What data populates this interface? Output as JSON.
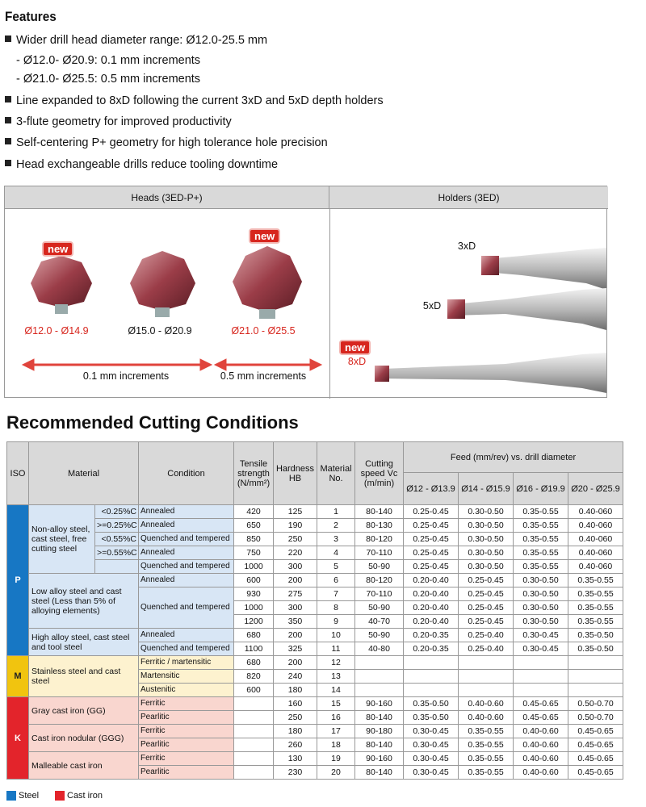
{
  "features": {
    "title": "Features",
    "items": [
      {
        "text": "Wider drill head diameter range: Ø12.0-25.5 mm",
        "subitems": [
          "- Ø12.0- Ø20.9: 0.1 mm increments",
          "- Ø21.0- Ø25.5: 0.5 mm increments"
        ]
      },
      {
        "text": "Line expanded to 8xD following the current 3xD and 5xD depth holders"
      },
      {
        "text": "3-flute geometry for improved productivity"
      },
      {
        "text": "Self-centering P+ geometry for high tolerance hole precision"
      },
      {
        "text": "Head exchangeable drills reduce tooling downtime"
      }
    ]
  },
  "overview": {
    "heads": {
      "title": "Heads (3ED-P+)",
      "items": [
        {
          "label": "Ø12.0 - Ø14.9",
          "badge": "new"
        },
        {
          "label": "Ø15.0 - Ø20.9"
        },
        {
          "label": "Ø21.0 - Ø25.5",
          "badge": "new"
        }
      ],
      "increments": [
        "0.1 mm increments",
        "0.5 mm increments"
      ]
    },
    "holders": {
      "title": "Holders (3ED)",
      "items": [
        {
          "label": "3xD"
        },
        {
          "label": "5xD"
        },
        {
          "label": "8xD",
          "badge": "new"
        }
      ]
    }
  },
  "cutting": {
    "title": "Recommended Cutting Conditions",
    "headers": {
      "iso": "ISO",
      "material": "Material",
      "condition": "Condition",
      "tensile": "Tensile strength (N/mm²)",
      "hardness": "Hardness HB",
      "material_no": "Material No.",
      "speed": "Cutting speed Vc (m/min)",
      "feed": "Feed (mm/rev) vs. drill diameter",
      "diameters": [
        "Ø12 - Ø13.9",
        "Ø14 - Ø15.9",
        "Ø16 - Ø19.9",
        "Ø20 - Ø25.9"
      ]
    },
    "groups": [
      {
        "iso": "P",
        "materials": [
          {
            "name": "Non-alloy steel, cast steel, free cutting steel",
            "rows": [
              {
                "carbon": "<0.25%C",
                "condition": "Annealed",
                "tensile": 420,
                "hb": 125,
                "no": 1,
                "vc": "80-140",
                "feed": [
                  "0.25-0.45",
                  "0.30-0.50",
                  "0.35-0.55",
                  "0.40-060"
                ]
              },
              {
                "carbon": ">=0.25%C",
                "condition": "Annealed",
                "tensile": 650,
                "hb": 190,
                "no": 2,
                "vc": "80-130",
                "feed": [
                  "0.25-0.45",
                  "0.30-0.50",
                  "0.35-0.55",
                  "0.40-060"
                ]
              },
              {
                "carbon": "<0.55%C",
                "condition": "Quenched and tempered",
                "tensile": 850,
                "hb": 250,
                "no": 3,
                "vc": "80-120",
                "feed": [
                  "0.25-0.45",
                  "0.30-0.50",
                  "0.35-0.55",
                  "0.40-060"
                ]
              },
              {
                "carbon": ">=0.55%C",
                "condition": "Annealed",
                "tensile": 750,
                "hb": 220,
                "no": 4,
                "vc": "70-110",
                "feed": [
                  "0.25-0.45",
                  "0.30-0.50",
                  "0.35-0.55",
                  "0.40-060"
                ]
              },
              {
                "condition": "Quenched and tempered",
                "tensile": 1000,
                "hb": 300,
                "no": 5,
                "vc": "50-90",
                "feed": [
                  "0.25-0.45",
                  "0.30-0.50",
                  "0.35-0.55",
                  "0.40-060"
                ]
              }
            ]
          },
          {
            "name": "Low alloy steel and cast steel (Less than 5% of alloying elements)",
            "rows": [
              {
                "condition": "Annealed",
                "tensile": 600,
                "hb": 200,
                "no": 6,
                "vc": "80-120",
                "feed": [
                  "0.20-0.40",
                  "0.25-0.45",
                  "0.30-0.50",
                  "0.35-0.55"
                ]
              },
              {
                "condition": "Quenched and tempered",
                "tensile": 930,
                "hb": 275,
                "no": 7,
                "vc": "70-110",
                "feed": [
                  "0.20-0.40",
                  "0.25-0.45",
                  "0.30-0.50",
                  "0.35-0.55"
                ]
              },
              {
                "tensile": 1000,
                "hb": 300,
                "no": 8,
                "vc": "50-90",
                "feed": [
                  "0.20-0.40",
                  "0.25-0.45",
                  "0.30-0.50",
                  "0.35-0.55"
                ]
              },
              {
                "tensile": 1200,
                "hb": 350,
                "no": 9,
                "vc": "40-70",
                "feed": [
                  "0.20-0.40",
                  "0.25-0.45",
                  "0.30-0.50",
                  "0.35-0.55"
                ]
              }
            ]
          },
          {
            "name": "High alloy steel, cast steel and tool steel",
            "rows": [
              {
                "condition": "Annealed",
                "tensile": 680,
                "hb": 200,
                "no": 10,
                "vc": "50-90",
                "feed": [
                  "0.20-0.35",
                  "0.25-0.40",
                  "0.30-0.45",
                  "0.35-0.50"
                ]
              },
              {
                "condition": "Quenched and tempered",
                "tensile": 1100,
                "hb": 325,
                "no": 11,
                "vc": "40-80",
                "feed": [
                  "0.20-0.35",
                  "0.25-0.40",
                  "0.30-0.45",
                  "0.35-0.50"
                ]
              }
            ]
          }
        ]
      },
      {
        "iso": "M",
        "materials": [
          {
            "name": "Stainless steel and cast steel",
            "rows": [
              {
                "condition": "Ferritic / martensitic",
                "tensile": 680,
                "hb": 200,
                "no": 12
              },
              {
                "condition": "Martensitic",
                "tensile": 820,
                "hb": 240,
                "no": 13
              },
              {
                "condition": "Austenitic",
                "tensile": 600,
                "hb": 180,
                "no": 14
              }
            ]
          }
        ]
      },
      {
        "iso": "K",
        "materials": [
          {
            "name": "Gray cast iron (GG)",
            "rows": [
              {
                "condition": "Ferritic",
                "hb": 160,
                "no": 15,
                "vc": "90-160",
                "feed": [
                  "0.35-0.50",
                  "0.40-0.60",
                  "0.45-0.65",
                  "0.50-0.70"
                ]
              },
              {
                "condition": "Pearlitic",
                "hb": 250,
                "no": 16,
                "vc": "80-140",
                "feed": [
                  "0.35-0.50",
                  "0.40-0.60",
                  "0.45-0.65",
                  "0.50-0.70"
                ]
              }
            ]
          },
          {
            "name": "Cast iron nodular (GGG)",
            "rows": [
              {
                "condition": "Ferritic",
                "hb": 180,
                "no": 17,
                "vc": "90-180",
                "feed": [
                  "0.30-0.45",
                  "0.35-0.55",
                  "0.40-0.60",
                  "0.45-0.65"
                ]
              },
              {
                "condition": "Pearlitic",
                "hb": 260,
                "no": 18,
                "vc": "80-140",
                "feed": [
                  "0.30-0.45",
                  "0.35-0.55",
                  "0.40-0.60",
                  "0.45-0.65"
                ]
              }
            ]
          },
          {
            "name": "Malleable cast iron",
            "rows": [
              {
                "condition": "Ferritic",
                "hb": 130,
                "no": 19,
                "vc": "90-160",
                "feed": [
                  "0.30-0.45",
                  "0.35-0.55",
                  "0.40-0.60",
                  "0.45-0.65"
                ]
              },
              {
                "condition": "Pearlitic",
                "hb": 230,
                "no": 20,
                "vc": "80-140",
                "feed": [
                  "0.30-0.45",
                  "0.35-0.55",
                  "0.40-0.60",
                  "0.45-0.65"
                ]
              }
            ]
          }
        ]
      }
    ]
  },
  "legend": [
    "Steel",
    "Cast iron"
  ]
}
